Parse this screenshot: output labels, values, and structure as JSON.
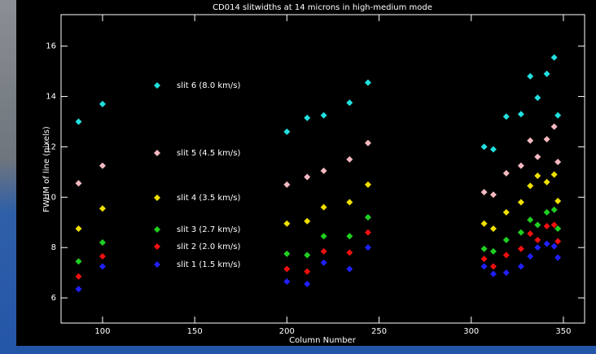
{
  "chart_data": {
    "type": "scatter",
    "title": "CD014 slitwidths at 14 microns in high-medium mode",
    "x_label": "Column Number",
    "y_label": "FWHM of line (pixels)",
    "x": [
      87,
      100,
      200,
      211,
      220,
      234,
      244,
      307,
      312,
      319,
      327,
      332,
      336,
      341,
      345,
      347
    ],
    "series": [
      {
        "name": "slit 6 (8.0 km/s)",
        "color": "#22e0e0",
        "values": [
          13.0,
          13.7,
          12.6,
          13.15,
          13.25,
          13.75,
          14.55,
          12.0,
          11.9,
          13.2,
          13.3,
          14.8,
          13.95,
          14.9,
          15.55,
          13.25
        ]
      },
      {
        "name": "slit 5 (4.5 km/s)",
        "color": "#f4b8c0",
        "values": [
          10.55,
          11.25,
          10.5,
          10.8,
          11.05,
          11.5,
          12.15,
          10.2,
          10.1,
          10.95,
          11.25,
          12.25,
          11.6,
          12.3,
          12.8,
          11.4
        ]
      },
      {
        "name": "slit 4 (3.5 km/s)",
        "color": "#f0e000",
        "values": [
          8.75,
          9.55,
          8.95,
          9.05,
          9.6,
          9.8,
          10.5,
          8.95,
          8.75,
          9.4,
          9.8,
          10.45,
          10.85,
          10.6,
          10.9,
          9.85
        ]
      },
      {
        "name": "slit 3 (2.7 km/s)",
        "color": "#20d020",
        "values": [
          7.45,
          8.2,
          7.75,
          7.7,
          8.45,
          8.45,
          9.2,
          7.95,
          7.85,
          8.3,
          8.6,
          9.1,
          8.9,
          9.4,
          9.5,
          8.75
        ]
      },
      {
        "name": "slit 2 (2.0 km/s)",
        "color": "#f01010",
        "values": [
          6.85,
          7.65,
          7.15,
          7.05,
          7.85,
          7.8,
          8.6,
          7.55,
          7.25,
          7.7,
          7.95,
          8.55,
          8.3,
          8.85,
          8.9,
          8.25
        ]
      },
      {
        "name": "slit 1 (1.5 km/s)",
        "color": "#2020ff",
        "values": [
          6.35,
          7.25,
          6.65,
          6.55,
          7.4,
          7.15,
          8.0,
          7.25,
          6.95,
          7.0,
          7.25,
          7.65,
          8.0,
          8.15,
          8.05,
          7.6
        ]
      }
    ],
    "xlim": [
      77.5,
      361.5
    ],
    "ylim": [
      5,
      17.25
    ],
    "xticks": [
      100,
      150,
      200,
      250,
      300,
      350
    ],
    "yticks": [
      6,
      8,
      10,
      12,
      14,
      16
    ]
  }
}
